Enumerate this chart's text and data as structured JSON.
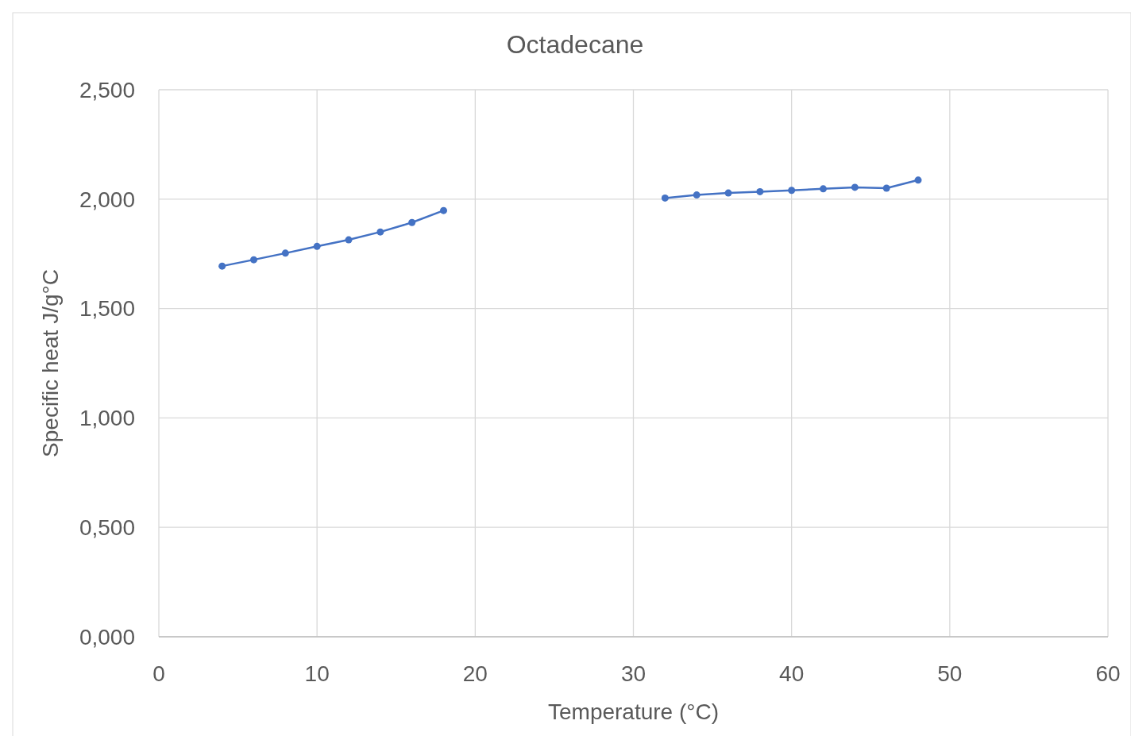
{
  "chart_data": {
    "type": "line",
    "title": "Octadecane",
    "xlabel": "Temperature (°C)",
    "ylabel": "Specific heat J/g°C",
    "xlim": [
      0,
      60
    ],
    "xticks": [
      0,
      10,
      20,
      30,
      40,
      50,
      60
    ],
    "ylim": [
      0,
      2.5
    ],
    "yticks": [
      {
        "value": 0,
        "label": "0,000"
      },
      {
        "value": 0.5,
        "label": "0,500"
      },
      {
        "value": 1,
        "label": "1,000"
      },
      {
        "value": 1.5,
        "label": "1,500"
      },
      {
        "value": 2,
        "label": "2,000"
      },
      {
        "value": 2.5,
        "label": "2,500"
      }
    ],
    "grid": true,
    "marker": "circle",
    "line_style": "solid",
    "series": [
      {
        "color": "#4472c4",
        "x": [
          4,
          6,
          8,
          10,
          12,
          14,
          16,
          18
        ],
        "values": [
          1.694,
          1.723,
          1.753,
          1.784,
          1.814,
          1.85,
          1.893,
          1.948
        ]
      },
      {
        "color": "#4472c4",
        "x": [
          32,
          34,
          36,
          38,
          40,
          42,
          44,
          46,
          48
        ],
        "values": [
          2.005,
          2.019,
          2.028,
          2.034,
          2.04,
          2.047,
          2.054,
          2.05,
          2.087
        ]
      }
    ]
  }
}
